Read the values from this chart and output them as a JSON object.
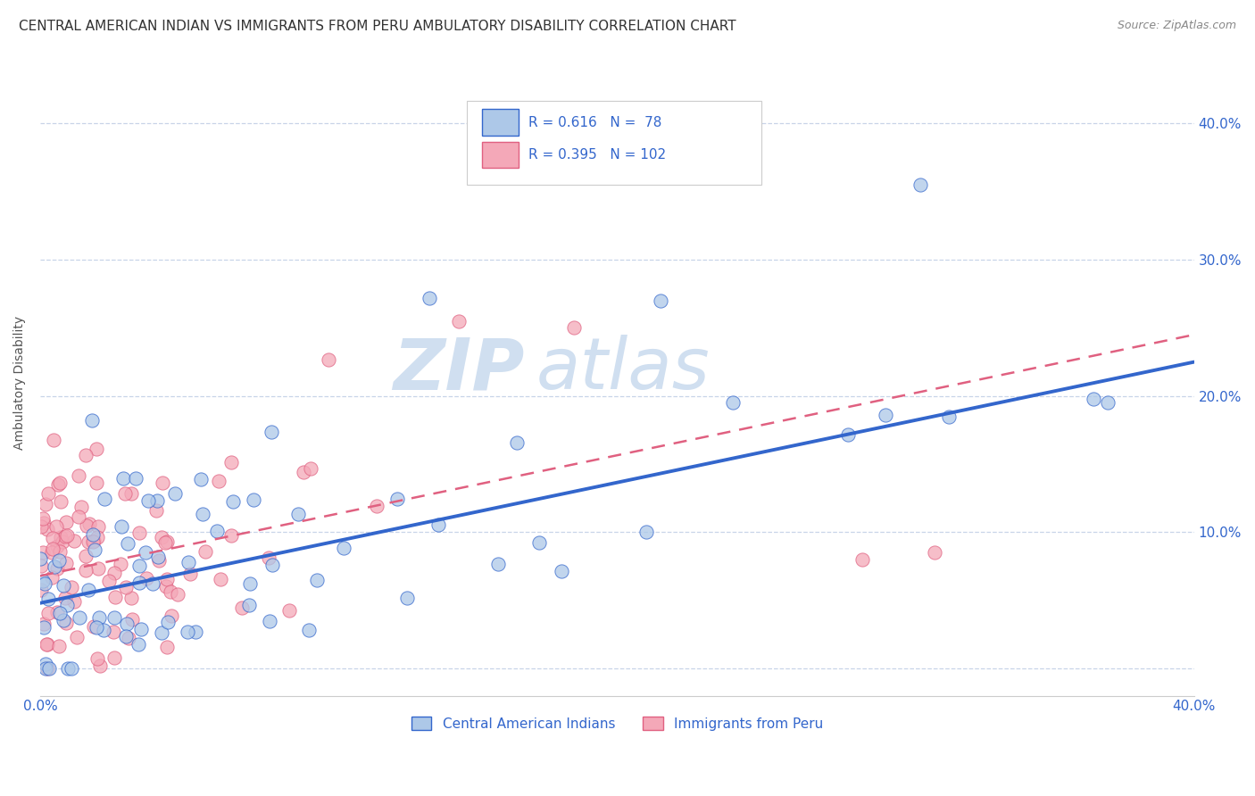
{
  "title": "CENTRAL AMERICAN INDIAN VS IMMIGRANTS FROM PERU AMBULATORY DISABILITY CORRELATION CHART",
  "source": "Source: ZipAtlas.com",
  "ylabel": "Ambulatory Disability",
  "xlim": [
    0.0,
    0.4
  ],
  "ylim": [
    -0.02,
    0.44
  ],
  "blue_R": 0.616,
  "blue_N": 78,
  "pink_R": 0.395,
  "pink_N": 102,
  "blue_color": "#adc8e8",
  "blue_line_color": "#3366cc",
  "pink_color": "#f4a8b8",
  "pink_line_color": "#e06080",
  "watermark_color": "#d0dff0",
  "legend_label_blue": "Central American Indians",
  "legend_label_pink": "Immigrants from Peru",
  "title_fontsize": 11,
  "source_fontsize": 9,
  "axis_label_fontsize": 10,
  "tick_fontsize": 11,
  "blue_seed": 12,
  "pink_seed": 99,
  "blue_trend_start_y": 0.048,
  "blue_trend_end_y": 0.225,
  "pink_trend_start_y": 0.068,
  "pink_trend_end_y": 0.245
}
